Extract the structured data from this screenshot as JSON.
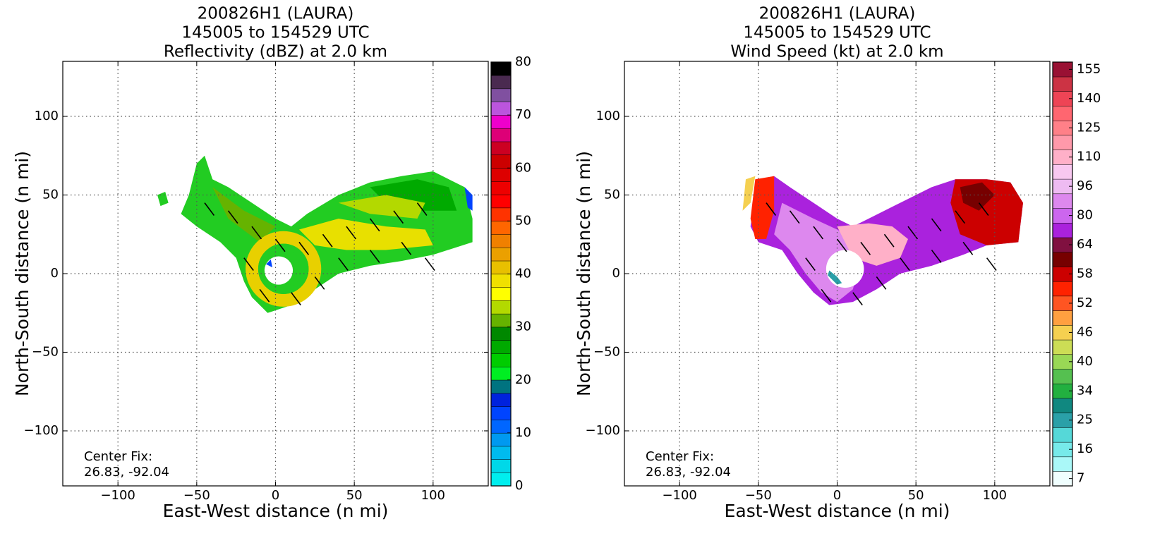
{
  "chart_data": [
    {
      "type": "radar_field",
      "title_lines": [
        "200826H1 (LAURA)",
        "145005 to 154529 UTC",
        "Reflectivity (dBZ) at 2.0 km"
      ],
      "x_label": "East-West distance (n mi)",
      "y_label": "North-South distance (n mi)",
      "xlim": [
        -135,
        135
      ],
      "ylim": [
        -135,
        135
      ],
      "xticks": [
        {
          "value": -100,
          "label": "−100"
        },
        {
          "value": -50,
          "label": "−50"
        },
        0,
        50,
        100
      ],
      "yticks": [
        {
          "value": -100,
          "label": "−100"
        },
        {
          "value": -50,
          "label": "−50"
        },
        0,
        50,
        100
      ],
      "grid": true,
      "annotation": [
        "Center Fix:",
        "26.83, -92.04"
      ],
      "colorbar": {
        "lim": [
          0,
          80
        ],
        "ticks": [
          0,
          10,
          20,
          30,
          40,
          50,
          60,
          70,
          80
        ],
        "colors": [
          "#00eeee",
          "#00d8e8",
          "#00bbee",
          "#0099f0",
          "#0066ff",
          "#0044ff",
          "#0022dd",
          "#007380",
          "#00ee22",
          "#00cc00",
          "#00aa00",
          "#008800",
          "#66b300",
          "#b3d900",
          "#ffff00",
          "#f0e000",
          "#e8c000",
          "#eba000",
          "#f08000",
          "#ff6600",
          "#ff3300",
          "#ff0000",
          "#ee0000",
          "#dd0000",
          "#cc0000",
          "#cc0022",
          "#dd0077",
          "#ee00cc",
          "#bb55dd",
          "#8050a0",
          "#4a2a50",
          "#000000"
        ]
      }
    },
    {
      "type": "radar_field",
      "title_lines": [
        "200826H1 (LAURA)",
        "145005 to 154529 UTC",
        "Wind Speed (kt) at 2.0 km"
      ],
      "x_label": "East-West distance (n mi)",
      "y_label": "North-South distance (n mi)",
      "xlim": [
        -135,
        135
      ],
      "ylim": [
        -135,
        135
      ],
      "xticks": [
        {
          "value": -100,
          "label": "−100"
        },
        {
          "value": -50,
          "label": "−50"
        },
        0,
        50,
        100
      ],
      "yticks": [
        {
          "value": -100,
          "label": "−100"
        },
        {
          "value": -50,
          "label": "−50"
        },
        0,
        50,
        100
      ],
      "grid": true,
      "annotation": [
        "Center Fix:",
        "26.83, -92.04"
      ],
      "colorbar": {
        "ticks": [
          7,
          16,
          25,
          34,
          40,
          46,
          52,
          58,
          64,
          80,
          96,
          110,
          125,
          140,
          155
        ],
        "colors": [
          "#f0ffff",
          "#aaf8f8",
          "#77eaea",
          "#55d8d8",
          "#2aa0a8",
          "#108880",
          "#22b040",
          "#55c050",
          "#99d855",
          "#ccdd55",
          "#f5d050",
          "#ffa040",
          "#ff5522",
          "#ff2200",
          "#cc0000",
          "#770000",
          "#801040",
          "#aa22dd",
          "#cc66ee",
          "#dd88ee",
          "#eebbf2",
          "#f8c8f0",
          "#ffb0c8",
          "#ff99aa",
          "#ff8088",
          "#ff6670",
          "#ee4455",
          "#cc3344",
          "#991133"
        ]
      }
    }
  ]
}
